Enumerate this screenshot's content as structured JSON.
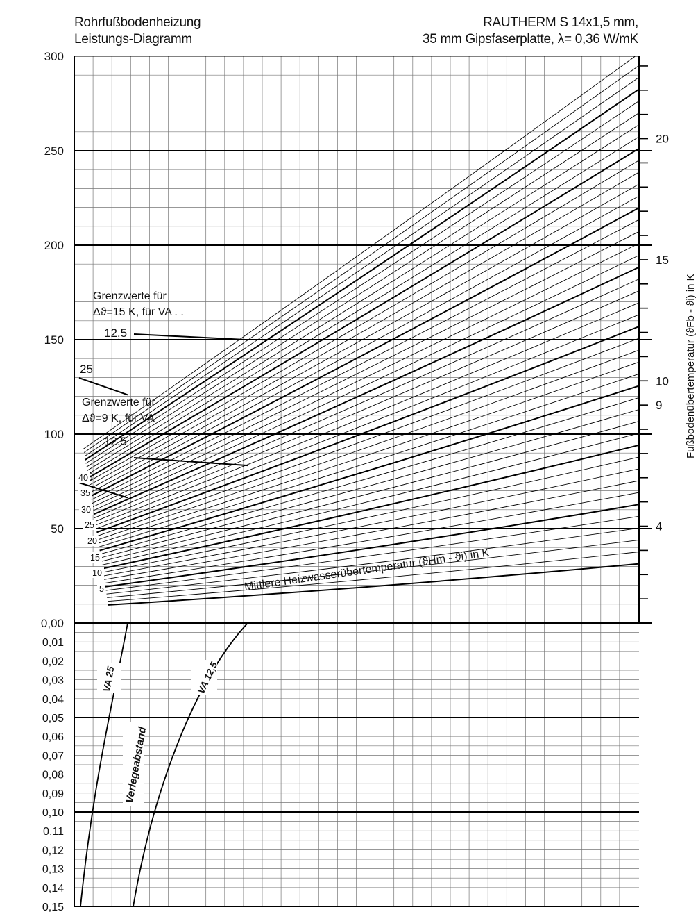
{
  "header": {
    "title_line1": "Rohrfußbodenheizung",
    "title_line2": "Leistungs-Diagramm",
    "spec_line1": "RAUTHERM S 14x1,5 mm,",
    "spec_line2": "35 mm Gipsfaserplatte, λ= 0,36 W/mK"
  },
  "chart_data": [
    {
      "type": "line",
      "title": "Leistungs-Diagramm",
      "ylim": [
        0,
        300
      ],
      "y_ticks": [
        "300",
        "250",
        "200",
        "150",
        "100",
        "50",
        "0,00"
      ],
      "right_axis": {
        "label": "Fußbodenübertemperatur (ϑFb - ϑi) in K",
        "ticks": [
          {
            "label": "20",
            "value": 20
          },
          {
            "label": "15",
            "value": 15
          },
          {
            "label": "10",
            "value": 10
          },
          {
            "label": "9",
            "value": 9
          },
          {
            "label": "4",
            "value": 4
          }
        ]
      },
      "curve_annotation": "Mittlere Heizwasserübertemperatur (ϑHm - ϑi) in K",
      "curve_labels": [
        {
          "label": "40",
          "value": 40
        },
        {
          "label": "35",
          "value": 35
        },
        {
          "label": "30",
          "value": 30
        },
        {
          "label": "25",
          "value": 25
        },
        {
          "label": "20",
          "value": 20
        },
        {
          "label": "15",
          "value": 15
        },
        {
          "label": "10",
          "value": 10
        },
        {
          "label": "5",
          "value": 5
        }
      ],
      "series_range": {
        "min": 5,
        "max": 48,
        "step": 1,
        "bold_every": 5
      },
      "limits": [
        {
          "heading_line1": "Grenzwerte für",
          "heading_line2": "Δϑ=15 K, für VA . .",
          "label": "12,5",
          "q": 150
        },
        {
          "label": "25",
          "q": 123
        },
        {
          "heading_line1": "Grenzwerte für",
          "heading_line2": "Δϑ=9 K, für VA",
          "label": "12,5",
          "q": 86
        },
        {
          "label": "25",
          "q": 70
        }
      ]
    },
    {
      "type": "line",
      "ylim": [
        0,
        0.15
      ],
      "y_ticks": [
        "0,00",
        "0,01",
        "0,02",
        "0,03",
        "0,04",
        "0,05",
        "0,06",
        "0,07",
        "0,08",
        "0,09",
        "0,10",
        "0,11",
        "0,12",
        "0,13",
        "0,14",
        "0,15"
      ],
      "axis_label": "Verlegeabstand",
      "series": [
        {
          "name": "VA 25"
        },
        {
          "name": "VA 12,5"
        }
      ]
    }
  ]
}
